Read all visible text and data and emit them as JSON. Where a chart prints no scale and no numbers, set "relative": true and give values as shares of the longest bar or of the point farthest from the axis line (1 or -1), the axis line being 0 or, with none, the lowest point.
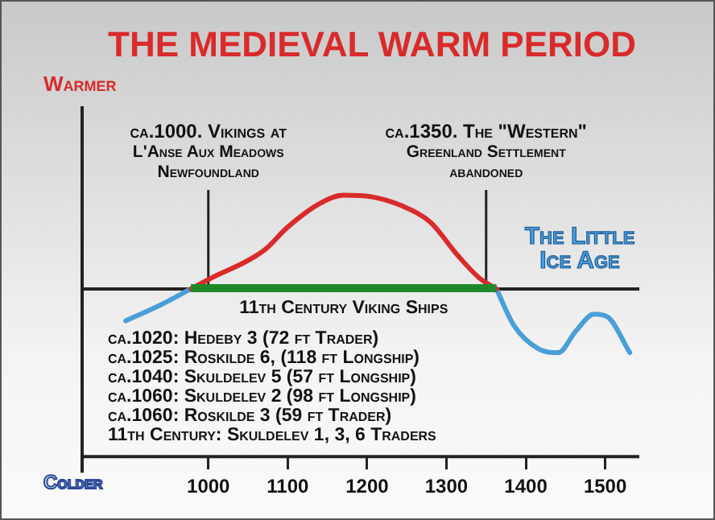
{
  "chart_data": {
    "type": "line",
    "title": "THE MEDIEVAL WARM PERIOD",
    "relative": true,
    "xlim": [
      841,
      1543
    ],
    "xticks": [
      1000,
      1100,
      1200,
      1300,
      1400,
      1500
    ],
    "series": [
      {
        "color": "#d92b2b",
        "x": [
          978,
          1000,
          1070,
          1100,
          1140,
          1170,
          1208,
          1243,
          1280,
          1314,
          1341,
          1363
        ],
        "values": [
          0,
          0.1,
          0.41,
          0.66,
          0.91,
          1,
          0.98,
          0.89,
          0.71,
          0.36,
          0.12,
          0
        ]
      },
      {
        "name": "The Little Ice Age",
        "color": "#4a9fd8",
        "x": [
          896,
          940,
          978,
          1170,
          1363,
          1385,
          1416,
          1441,
          1463,
          1486,
          1503,
          1531
        ],
        "values": [
          -0.34,
          -0.17,
          0,
          null,
          0,
          -0.39,
          -0.64,
          -0.68,
          -0.45,
          -0.27,
          -0.3,
          -0.68
        ]
      }
    ],
    "ref_lines": [
      {
        "axis": "x",
        "value": 1000,
        "label": "ca.1000. Vikings at L'Anse Aux Meadows Newfoundland",
        "color": "#222222"
      },
      {
        "axis": "x",
        "value": 1350,
        "label": "ca.1350. The \"Western\" Greenland Settlement abandoned",
        "color": "#222222"
      }
    ],
    "bands": [
      {
        "axis": "x",
        "from": 978,
        "to": 1363,
        "label": "11th Century Viking Ships",
        "color": "#1e8a2a"
      }
    ],
    "annotations": [
      "Warmer",
      "Colder",
      "ca.1020: Hedeby 3 (72 ft Trader)",
      "ca.1025: Roskilde 6, (118 ft Longship)",
      "ca.1040: Skuldelev 5 (57 ft Longship)",
      "ca.1060: Skuldelev 2 (98 ft Longship)",
      "ca.1060: Roskilde 3 (59 ft Trader)",
      "11th Century: Skuldelev 1, 3, 6 Traders"
    ],
    "legend": false,
    "grid": false,
    "marker": "none",
    "line_style": "solid"
  }
}
